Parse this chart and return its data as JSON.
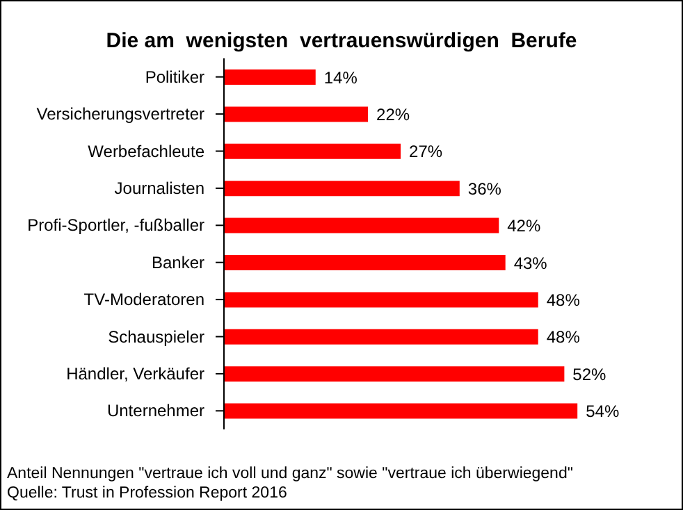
{
  "chart_data": {
    "type": "bar",
    "orientation": "horizontal",
    "title": "Die am  wenigsten  vertrauenswürdigen  Berufe",
    "categories": [
      "Politiker",
      "Versicherungsvertreter",
      "Werbefachleute",
      "Journalisten",
      "Profi-Sportler, -fußballer",
      "Banker",
      "TV-Moderatoren",
      "Schauspieler",
      "Händler, Verkäufer",
      "Unternehmer"
    ],
    "values": [
      14,
      22,
      27,
      36,
      42,
      43,
      48,
      48,
      52,
      54
    ],
    "value_labels": [
      "14%",
      "22%",
      "27%",
      "36%",
      "42%",
      "43%",
      "48%",
      "48%",
      "52%",
      "54%"
    ],
    "color": "#ff0000",
    "annotations": [
      "Anteil Nennungen \"vertraue ich voll und ganz\" sowie \"vertraue ich überwiegend\"",
      "Quelle: Trust in Profession Report 2016"
    ]
  }
}
